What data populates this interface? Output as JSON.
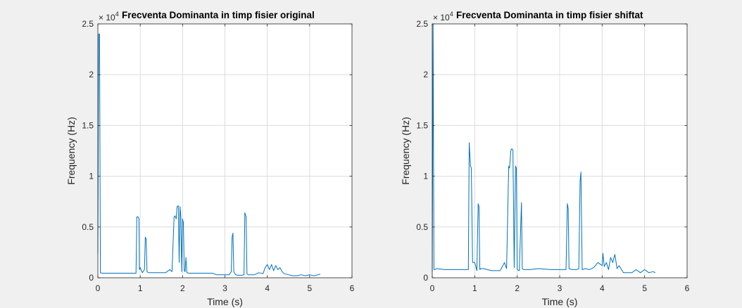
{
  "chart_data": [
    {
      "type": "line",
      "title": "Frecventa Dominanta in timp fisier original",
      "xlabel": "Time (s)",
      "ylabel": "Frequency (Hz)",
      "xlim": [
        0,
        6
      ],
      "ylim": [
        0,
        25000
      ],
      "xticks": [
        0,
        1,
        2,
        3,
        4,
        5,
        6
      ],
      "yticks": [
        0,
        0.5,
        1,
        1.5,
        2,
        2.5
      ],
      "xtick_labels": [
        "0",
        "1",
        "2",
        "3",
        "4",
        "5",
        "6"
      ],
      "ytick_labels": [
        "0",
        "0.5",
        "1",
        "1.5",
        "2",
        "2.5"
      ],
      "y_exponent": "× 10",
      "y_exponent_power": "4",
      "grid": true,
      "color": "#0072bd",
      "x": [
        0,
        0.02,
        0.04,
        0.06,
        0.1,
        0.3,
        0.5,
        0.7,
        0.9,
        0.92,
        0.95,
        0.97,
        0.98,
        1.0,
        1.05,
        1.1,
        1.12,
        1.14,
        1.16,
        1.2,
        1.4,
        1.6,
        1.7,
        1.75,
        1.8,
        1.82,
        1.85,
        1.87,
        1.9,
        1.92,
        1.94,
        1.96,
        1.98,
        2.0,
        2.02,
        2.04,
        2.06,
        2.08,
        2.1,
        2.15,
        2.3,
        2.5,
        2.7,
        2.8,
        2.9,
        3.0,
        3.1,
        3.15,
        3.17,
        3.19,
        3.21,
        3.25,
        3.3,
        3.4,
        3.45,
        3.47,
        3.5,
        3.52,
        3.55,
        3.6,
        3.7,
        3.8,
        3.9,
        3.95,
        4.0,
        4.05,
        4.1,
        4.15,
        4.2,
        4.25,
        4.3,
        4.35,
        4.4,
        4.5,
        4.6,
        4.7,
        4.8,
        4.9,
        5.0,
        5.1,
        5.2,
        5.25
      ],
      "y": [
        2400,
        24000,
        24000,
        500,
        450,
        450,
        450,
        450,
        450,
        6000,
        6000,
        5800,
        800,
        1000,
        500,
        800,
        4000,
        3800,
        600,
        500,
        500,
        500,
        800,
        600,
        6000,
        6100,
        5800,
        7000,
        7100,
        1500,
        7000,
        6000,
        600,
        5800,
        5400,
        700,
        600,
        2000,
        500,
        450,
        450,
        450,
        450,
        300,
        300,
        300,
        300,
        600,
        4000,
        4400,
        600,
        300,
        250,
        250,
        300,
        6400,
        6000,
        400,
        300,
        300,
        300,
        500,
        400,
        1000,
        1300,
        800,
        1300,
        700,
        1200,
        800,
        1000,
        600,
        400,
        300,
        200,
        200,
        300,
        200,
        300,
        200,
        300,
        350
      ]
    },
    {
      "type": "line",
      "title": "Frecventa Dominanta in timp fisier shiftat",
      "xlabel": "Time (s)",
      "ylabel": "Frequency (Hz)",
      "xlim": [
        0,
        6
      ],
      "ylim": [
        0,
        25000
      ],
      "xticks": [
        0,
        1,
        2,
        3,
        4,
        5,
        6
      ],
      "yticks": [
        0,
        0.5,
        1,
        1.5,
        2,
        2.5
      ],
      "xtick_labels": [
        "0",
        "1",
        "2",
        "3",
        "4",
        "5",
        "6"
      ],
      "ytick_labels": [
        "0",
        "0.5",
        "1",
        "1.5",
        "2",
        "2.5"
      ],
      "y_exponent": "× 10",
      "y_exponent_power": "4",
      "grid": true,
      "color": "#0072bd",
      "x": [
        0,
        0.02,
        0.04,
        0.06,
        0.1,
        0.3,
        0.5,
        0.7,
        0.85,
        0.87,
        0.9,
        0.92,
        0.95,
        1.0,
        1.05,
        1.08,
        1.1,
        1.12,
        1.14,
        1.2,
        1.4,
        1.6,
        1.7,
        1.75,
        1.8,
        1.82,
        1.85,
        1.87,
        1.9,
        1.93,
        1.96,
        1.98,
        2.0,
        2.05,
        2.1,
        2.12,
        2.15,
        2.3,
        2.5,
        2.8,
        3.0,
        3.15,
        3.18,
        3.2,
        3.22,
        3.3,
        3.4,
        3.45,
        3.48,
        3.5,
        3.53,
        3.6,
        3.7,
        3.8,
        3.9,
        4.0,
        4.02,
        4.05,
        4.1,
        4.15,
        4.2,
        4.25,
        4.3,
        4.35,
        4.4,
        4.5,
        4.6,
        4.7,
        4.8,
        4.9,
        5.0,
        5.1,
        5.2,
        5.25
      ],
      "y": [
        600,
        25000,
        800,
        800,
        900,
        800,
        800,
        800,
        800,
        13300,
        11000,
        10800,
        1500,
        1500,
        700,
        7300,
        7000,
        800,
        900,
        900,
        700,
        700,
        1500,
        900,
        11000,
        10800,
        12500,
        12700,
        12600,
        1000,
        11000,
        10800,
        800,
        700,
        7400,
        900,
        800,
        800,
        900,
        800,
        800,
        800,
        7300,
        6800,
        900,
        800,
        800,
        900,
        9500,
        10400,
        800,
        900,
        800,
        1000,
        1500,
        1200,
        2400,
        1100,
        1500,
        800,
        2000,
        1500,
        2300,
        900,
        1200,
        500,
        500,
        500,
        800,
        500,
        800,
        500,
        600,
        500
      ]
    }
  ]
}
